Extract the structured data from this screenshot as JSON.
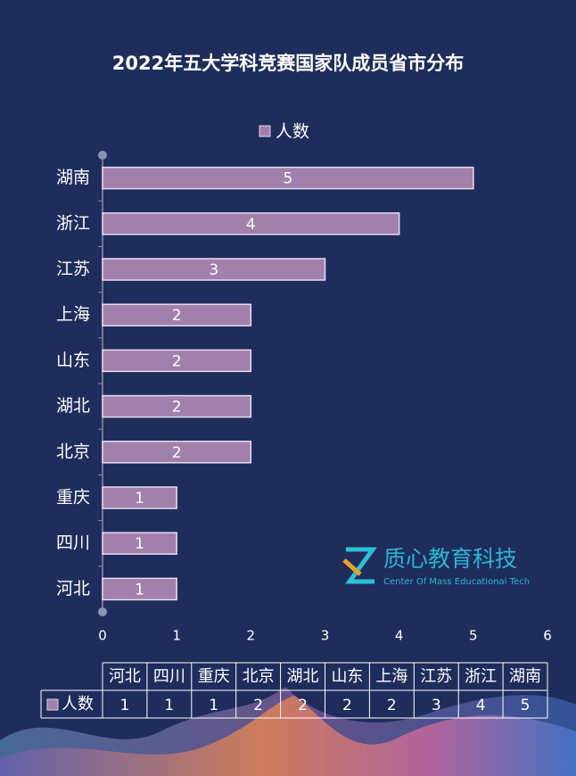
{
  "chart_data": {
    "type": "bar",
    "orientation": "horizontal",
    "title": "2022年五大学科竞赛国家队成员省市分布",
    "categories": [
      "河北",
      "四川",
      "重庆",
      "北京",
      "湖北",
      "山东",
      "上海",
      "江苏",
      "浙江",
      "湖南"
    ],
    "series": [
      {
        "name": "人数",
        "color": "#a280ac",
        "values": [
          1,
          1,
          1,
          2,
          2,
          2,
          2,
          3,
          4,
          5
        ]
      }
    ],
    "xlim": [
      0,
      6
    ],
    "xticks": [
      0,
      1,
      2,
      3,
      4,
      5,
      6
    ],
    "grid": false,
    "legend": "top",
    "data_table": true
  },
  "watermark": {
    "name": "质心教育科技",
    "subtitle": "Center Of Mass Educational Tech"
  }
}
